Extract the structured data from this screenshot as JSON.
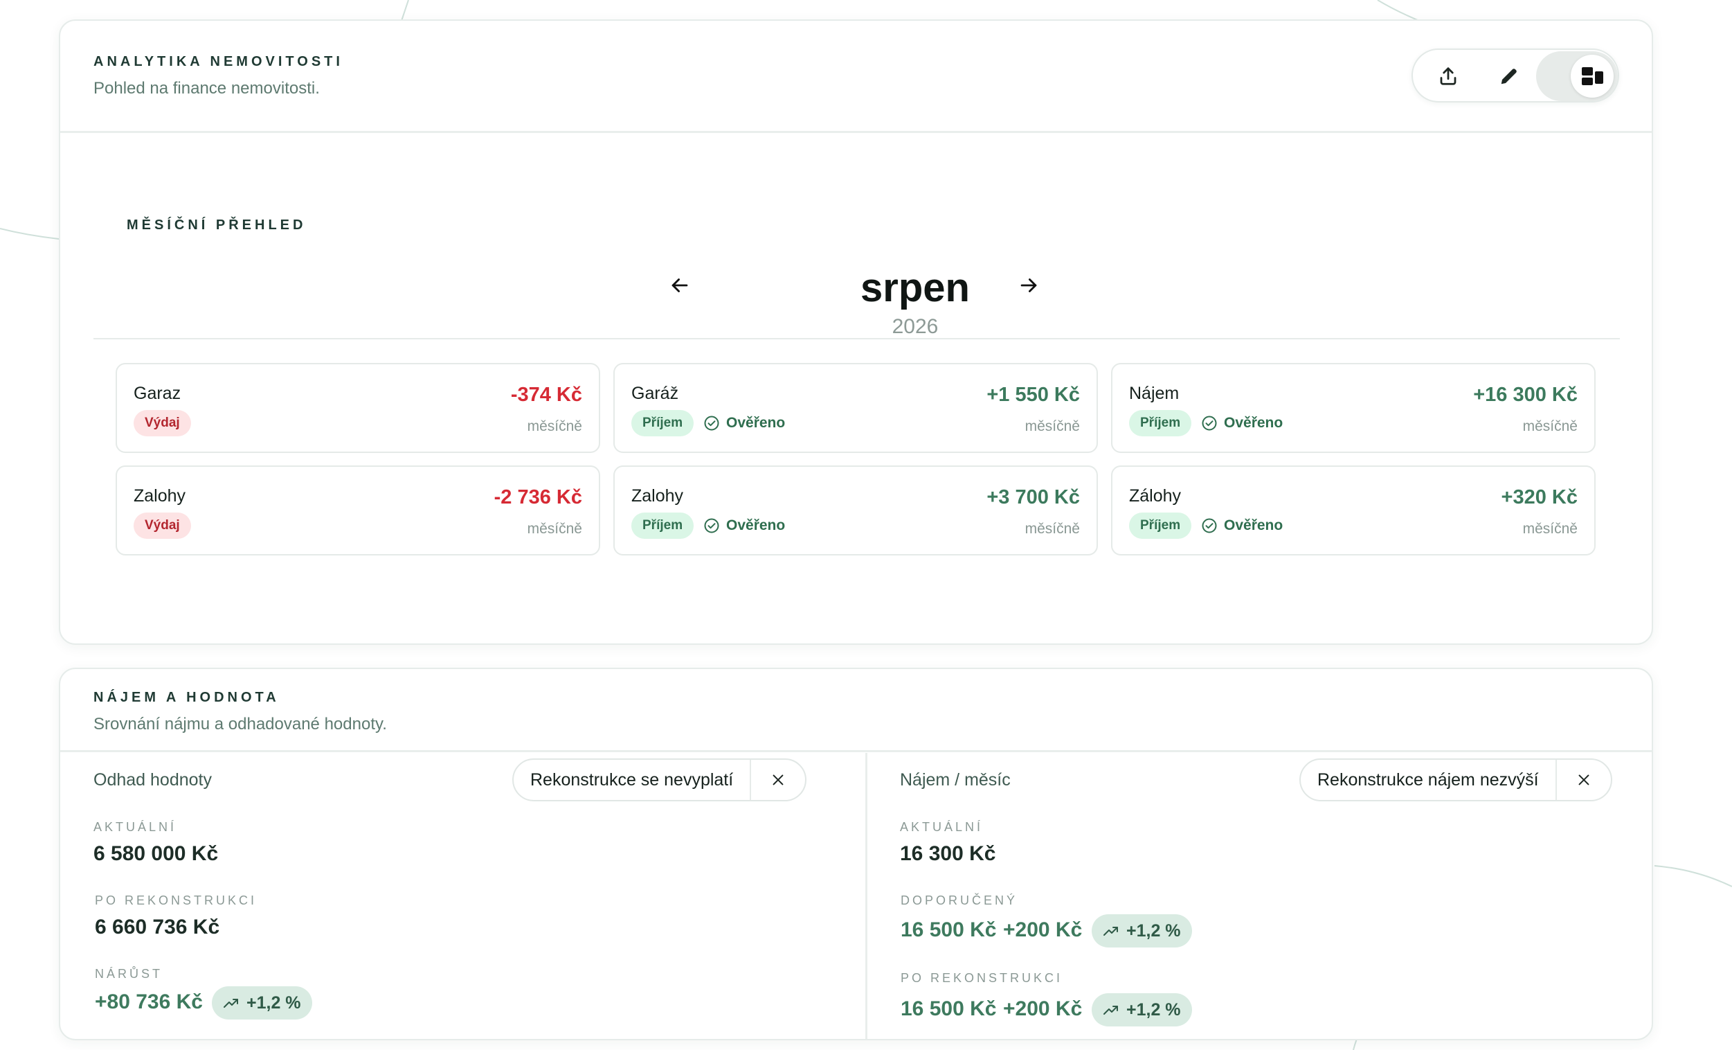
{
  "analytics": {
    "title": "ANALYTIKA NEMOVITOSTI",
    "subtitle": "Pohled na finance nemovitosti.",
    "toolbar": {
      "export_icon": "upload-icon",
      "edit_icon": "pencil-icon",
      "layout_icon": "dashboard-layout-icon"
    }
  },
  "monthly": {
    "title": "MĚSÍČNÍ PŘEHLED",
    "month": "srpen",
    "year": "2026",
    "entries": [
      {
        "title": "Garaz",
        "amount": "-374 Kč",
        "type": "Výdaj",
        "verified": "",
        "period": "měsíčně"
      },
      {
        "title": "Garáž",
        "amount": "+1 550 Kč",
        "type": "Příjem",
        "verified": "Ověřeno",
        "period": "měsíčně"
      },
      {
        "title": "Nájem",
        "amount": "+16 300 Kč",
        "type": "Příjem",
        "verified": "Ověřeno",
        "period": "měsíčně"
      },
      {
        "title": "Zalohy",
        "amount": "-2 736 Kč",
        "type": "Výdaj",
        "verified": "",
        "period": "měsíčně"
      },
      {
        "title": "Zalohy",
        "amount": "+3 700 Kč",
        "type": "Příjem",
        "verified": "Ověřeno",
        "period": "měsíčně"
      },
      {
        "title": "Zálohy",
        "amount": "+320 Kč",
        "type": "Příjem",
        "verified": "Ověřeno",
        "period": "měsíčně"
      }
    ]
  },
  "rent": {
    "title": "NÁJEM A HODNOTA",
    "subtitle": "Srovnání nájmu a odhadované hodnoty.",
    "value_col": {
      "label": "Odhad hodnoty",
      "chip": "Rekonstrukce se nevyplatí",
      "current_label": "AKTUÁLNÍ",
      "current_value": "6 580 000 Kč",
      "after_label": "PO REKONSTRUKCI",
      "after_value": "6 660 736 Kč",
      "growth_label": "NÁRŮST",
      "growth_value": "+80 736 Kč",
      "growth_pct": "+1,2 %"
    },
    "rent_col": {
      "label": "Nájem / měsíc",
      "chip": "Rekonstrukce nájem nezvýší",
      "current_label": "AKTUÁLNÍ",
      "current_value": "16 300 Kč",
      "recommended_label": "DOPORUČENÝ",
      "recommended_value": "16 500 Kč",
      "recommended_delta": "+200 Kč",
      "recommended_pct": "+1,2 %",
      "after_label": "PO REKONSTRUKCI",
      "after_value": "16 500 Kč",
      "after_delta": "+200 Kč",
      "after_pct": "+1,2 %"
    }
  },
  "colors": {
    "accent_green": "#3c7a5d",
    "negative_red": "#d62a34",
    "income_badge_bg": "#daf6e6",
    "expense_badge_bg": "#fde3e4"
  }
}
